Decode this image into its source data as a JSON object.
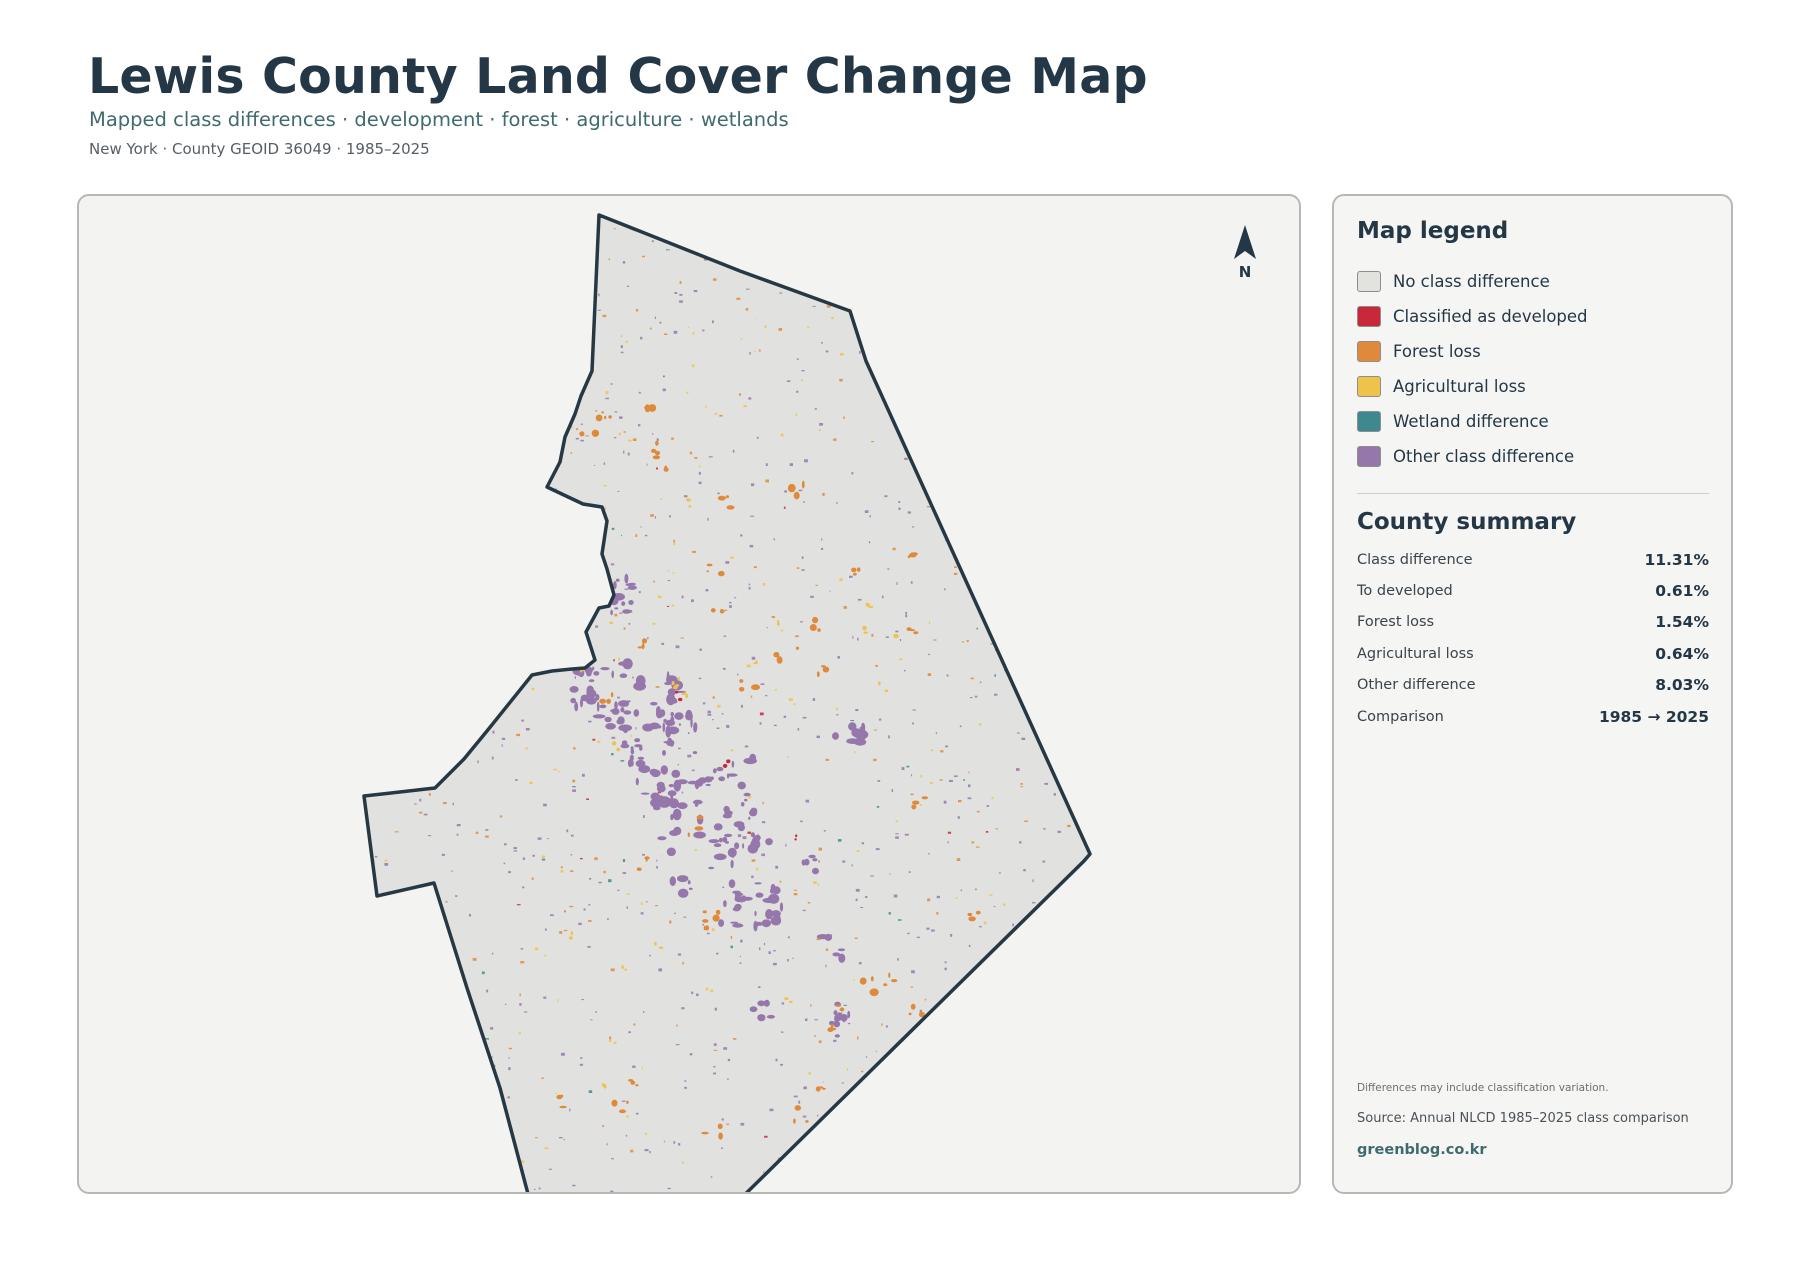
{
  "header": {
    "title": "Lewis County Land Cover Change Map",
    "subtitle": "Mapped class differences · development · forest · agriculture · wetlands",
    "meta": "New York · County GEOID 36049 · 1985–2025"
  },
  "map": {
    "north_label": "N",
    "county_fill": "#e1e2df",
    "boundary_color": "#263843"
  },
  "legend": {
    "title": "Map legend",
    "items": [
      {
        "label": "No class difference",
        "color": "#e2e2df"
      },
      {
        "label": "Classified as developed",
        "color": "#c8283a"
      },
      {
        "label": "Forest loss",
        "color": "#de8a3a"
      },
      {
        "label": "Agricultural loss",
        "color": "#eec34c"
      },
      {
        "label": "Wetland difference",
        "color": "#3e8990"
      },
      {
        "label": "Other class difference",
        "color": "#9677ab"
      }
    ]
  },
  "summary": {
    "title": "County summary",
    "rows": [
      {
        "label": "Class difference",
        "value": "11.31%"
      },
      {
        "label": "To developed",
        "value": "0.61%"
      },
      {
        "label": "Forest loss",
        "value": "1.54%"
      },
      {
        "label": "Agricultural loss",
        "value": "0.64%"
      },
      {
        "label": "Other difference",
        "value": "8.03%"
      },
      {
        "label": "Comparison",
        "value": "1985 → 2025"
      }
    ]
  },
  "footer": {
    "note": "Differences may include classification variation.",
    "source": "Source: Annual NLCD 1985–2025 class comparison",
    "credit": "greenblog.co.kr"
  }
}
